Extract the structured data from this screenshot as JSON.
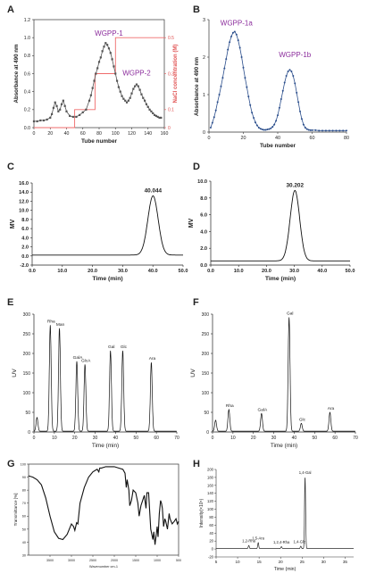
{
  "chart_data": [
    {
      "panel": "A",
      "type": "line",
      "xlabel": "Tube number",
      "ylabel": "Absorbance at 490 nm",
      "y2label": "NaCl concentration (M)",
      "xlim": [
        0,
        160
      ],
      "ylim": [
        0,
        1.2
      ],
      "y2lim": [
        0,
        0.6
      ],
      "xticks": [
        0,
        20,
        40,
        60,
        80,
        100,
        120,
        140,
        160
      ],
      "yticks": [
        0.0,
        0.2,
        0.4,
        0.6,
        0.8,
        1.0,
        1.2
      ],
      "y2ticks": [
        "0",
        "0.1",
        "0.3",
        "0.5"
      ],
      "annotations": [
        "WGPP-1",
        "WGPP-2"
      ],
      "series": [
        {
          "kind": "absorbance",
          "color": "#555555",
          "x": [
            0,
            4,
            8,
            12,
            16,
            20,
            22,
            24,
            26,
            28,
            30,
            32,
            34,
            36,
            38,
            40,
            44,
            48,
            52,
            56,
            60,
            64,
            68,
            70,
            72,
            74,
            76,
            78,
            80,
            82,
            84,
            86,
            88,
            90,
            92,
            94,
            96,
            98,
            100,
            102,
            104,
            106,
            108,
            110,
            112,
            114,
            116,
            118,
            120,
            122,
            124,
            126,
            128,
            130,
            132,
            134,
            136,
            138,
            140,
            142,
            144,
            146,
            148,
            150,
            152,
            154,
            156
          ],
          "y": [
            0.07,
            0.07,
            0.08,
            0.08,
            0.09,
            0.11,
            0.15,
            0.22,
            0.28,
            0.24,
            0.18,
            0.2,
            0.26,
            0.3,
            0.24,
            0.18,
            0.13,
            0.12,
            0.12,
            0.14,
            0.17,
            0.2,
            0.3,
            0.36,
            0.44,
            0.52,
            0.6,
            0.66,
            0.73,
            0.78,
            0.85,
            0.9,
            0.94,
            0.92,
            0.88,
            0.83,
            0.76,
            0.68,
            0.6,
            0.52,
            0.45,
            0.4,
            0.35,
            0.32,
            0.3,
            0.28,
            0.3,
            0.33,
            0.38,
            0.43,
            0.46,
            0.48,
            0.46,
            0.42,
            0.37,
            0.33,
            0.3,
            0.26,
            0.23,
            0.2,
            0.18,
            0.16,
            0.14,
            0.13,
            0.12,
            0.11,
            0.11
          ]
        },
        {
          "kind": "nacl_step",
          "color": "#ef6b6b",
          "x": [
            0,
            50,
            50,
            75,
            75,
            100,
            100,
            160
          ],
          "y": [
            0,
            0,
            0.1,
            0.1,
            0.3,
            0.3,
            0.5,
            0.5
          ]
        }
      ]
    },
    {
      "panel": "B",
      "type": "line",
      "xlabel": "Tube number",
      "ylabel": "Absorbance at 490 nm",
      "xlim": [
        0,
        80
      ],
      "ylim": [
        0,
        3
      ],
      "xticks": [
        0,
        20,
        40,
        60,
        80
      ],
      "yticks": [
        0,
        1,
        2,
        3
      ],
      "annotations": [
        "WGPP-1a",
        "WGPP-1b"
      ],
      "series": [
        {
          "color": "#2b4e8c",
          "x": [
            1,
            2,
            3,
            4,
            5,
            6,
            7,
            8,
            9,
            10,
            11,
            12,
            13,
            14,
            15,
            16,
            17,
            18,
            19,
            20,
            21,
            22,
            23,
            24,
            25,
            26,
            27,
            28,
            29,
            30,
            31,
            32,
            33,
            34,
            35,
            36,
            37,
            38,
            39,
            40,
            41,
            42,
            43,
            44,
            45,
            46,
            47,
            48,
            49,
            50,
            51,
            52,
            53,
            54,
            55,
            56,
            57,
            58,
            59,
            60,
            62,
            64,
            66,
            68,
            70,
            72,
            74,
            76,
            78,
            80
          ],
          "y": [
            0.12,
            0.25,
            0.4,
            0.58,
            0.8,
            1.0,
            1.22,
            1.45,
            1.7,
            1.95,
            2.2,
            2.4,
            2.55,
            2.65,
            2.68,
            2.6,
            2.45,
            2.25,
            2.0,
            1.72,
            1.45,
            1.2,
            0.95,
            0.72,
            0.52,
            0.38,
            0.26,
            0.18,
            0.12,
            0.09,
            0.07,
            0.06,
            0.06,
            0.07,
            0.08,
            0.1,
            0.14,
            0.2,
            0.3,
            0.45,
            0.65,
            0.88,
            1.1,
            1.32,
            1.5,
            1.62,
            1.66,
            1.62,
            1.5,
            1.3,
            1.05,
            0.8,
            0.55,
            0.35,
            0.2,
            0.12,
            0.08,
            0.06,
            0.05,
            0.05,
            0.05,
            0.04,
            0.04,
            0.04,
            0.04,
            0.04,
            0.04,
            0.04,
            0.04,
            0.04
          ]
        }
      ]
    },
    {
      "panel": "C",
      "type": "line",
      "xlabel": "Time (min)",
      "ylabel": "MV",
      "xlim": [
        0,
        50
      ],
      "ylim": [
        -2,
        16
      ],
      "xticks": [
        "0.0",
        "10.0",
        "20.0",
        "30.0",
        "40.0",
        "50.0"
      ],
      "yticks": [
        "-2.0",
        "0.0",
        "2.0",
        "4.0",
        "6.0",
        "8.0",
        "10.0",
        "12.0",
        "14.0",
        "16.0"
      ],
      "annotations": [
        "40.044"
      ],
      "peak": {
        "center": 40.044,
        "height": 13.0,
        "baseline": 0.2,
        "width": 1.7
      }
    },
    {
      "panel": "D",
      "type": "line",
      "xlabel": "Time (min)",
      "ylabel": "MV",
      "xlim": [
        0,
        50
      ],
      "ylim": [
        0,
        10
      ],
      "xticks": [
        "0.0",
        "10.0",
        "20.0",
        "30.0",
        "40.0",
        "50.0"
      ],
      "yticks": [
        "0.0",
        "2.0",
        "4.0",
        "6.0",
        "8.0",
        "10.0"
      ],
      "annotations": [
        "30.202"
      ],
      "peak": {
        "center": 30.202,
        "height": 8.4,
        "baseline": 0.5,
        "width": 1.7
      }
    },
    {
      "panel": "E",
      "type": "line",
      "xlabel": "Time (min)",
      "ylabel": "UV",
      "xlim": [
        0,
        70
      ],
      "ylim": [
        0,
        300
      ],
      "xticks": [
        0,
        10,
        20,
        30,
        40,
        50,
        60,
        70
      ],
      "yticks": [
        0,
        50,
        100,
        150,
        200,
        250,
        300
      ],
      "peaks": [
        {
          "label": "",
          "t": 1.5,
          "h": 35
        },
        {
          "label": "Rha",
          "t": 8.0,
          "h": 270
        },
        {
          "label": "Man",
          "t": 12.5,
          "h": 262
        },
        {
          "label": "GalA",
          "t": 21.0,
          "h": 178
        },
        {
          "label": "GlcA",
          "t": 25.0,
          "h": 170
        },
        {
          "label": "Gal",
          "t": 37.5,
          "h": 205
        },
        {
          "label": "Glc",
          "t": 43.5,
          "h": 205
        },
        {
          "label": "Ara",
          "t": 57.5,
          "h": 175
        }
      ]
    },
    {
      "panel": "F",
      "type": "line",
      "xlabel": "Time (min)",
      "ylabel": "UV",
      "xlim": [
        0,
        70
      ],
      "ylim": [
        0,
        300
      ],
      "xticks": [
        0,
        10,
        20,
        30,
        40,
        50,
        60,
        70
      ],
      "yticks": [
        0,
        50,
        100,
        150,
        200,
        250,
        300
      ],
      "peaks": [
        {
          "label": "",
          "t": 1.5,
          "h": 28
        },
        {
          "label": "Rha",
          "t": 8.0,
          "h": 55
        },
        {
          "label": "GalA",
          "t": 24.0,
          "h": 45
        },
        {
          "label": "Gal",
          "t": 37.5,
          "h": 290
        },
        {
          "label": "Glc",
          "t": 43.5,
          "h": 20
        },
        {
          "label": "Ara",
          "t": 57.5,
          "h": 48
        }
      ]
    },
    {
      "panel": "G",
      "type": "line",
      "xlabel": "Wavenumber cm-1",
      "ylabel": "Transmittance [%]",
      "xlim": [
        4000,
        500
      ],
      "ylim": [
        30,
        100
      ],
      "xticks": [
        3500,
        3000,
        2500,
        2000,
        1500,
        1000,
        500
      ],
      "yticks": [
        30,
        40,
        50,
        60,
        70,
        80,
        90,
        100
      ],
      "series": [
        {
          "color": "#111111",
          "x": [
            4000,
            3900,
            3800,
            3700,
            3600,
            3500,
            3400,
            3300,
            3200,
            3100,
            3000,
            2950,
            2920,
            2880,
            2850,
            2800,
            2700,
            2600,
            2500,
            2400,
            2360,
            2340,
            2300,
            2200,
            2100,
            2000,
            1900,
            1800,
            1750,
            1720,
            1700,
            1660,
            1640,
            1600,
            1560,
            1500,
            1450,
            1420,
            1400,
            1380,
            1340,
            1300,
            1260,
            1240,
            1200,
            1150,
            1100,
            1080,
            1050,
            1020,
            1000,
            980,
            950,
            920,
            900,
            880,
            850,
            820,
            800,
            760,
            720,
            700,
            650,
            600,
            560,
            530,
            500
          ],
          "y": [
            91,
            90,
            88,
            84,
            74,
            60,
            48,
            43,
            42,
            46,
            54,
            52,
            49,
            55,
            54,
            70,
            82,
            90,
            94,
            96,
            94,
            97,
            97,
            98,
            98,
            98,
            97,
            96,
            93,
            82,
            88,
            80,
            68,
            72,
            80,
            78,
            70,
            60,
            64,
            68,
            72,
            76,
            66,
            78,
            78,
            50,
            42,
            48,
            38,
            46,
            52,
            44,
            62,
            72,
            70,
            66,
            52,
            58,
            56,
            50,
            62,
            58,
            54,
            56,
            58,
            54,
            56
          ]
        }
      ]
    },
    {
      "panel": "H",
      "type": "line",
      "xlabel": "Time (min)",
      "ylabel": "Intensity(×10⁵)",
      "xlim": [
        5,
        37
      ],
      "ylim": [
        -20,
        200
      ],
      "xticks": [
        5,
        10,
        15,
        20,
        25,
        30,
        35
      ],
      "yticks": [
        -20,
        0,
        20,
        40,
        60,
        80,
        100,
        120,
        140,
        160,
        180,
        200
      ],
      "peaks": [
        {
          "label": "1,2-Rha",
          "t": 12.6,
          "h": 8
        },
        {
          "label": "1,5-Ara",
          "t": 14.8,
          "h": 15
        },
        {
          "label": "1,2,4-Rha",
          "t": 20.2,
          "h": 5
        },
        {
          "label": "1,4-Glc",
          "t": 24.7,
          "h": 6
        },
        {
          "label": "1,4-Gal",
          "t": 25.7,
          "h": 180
        }
      ]
    }
  ]
}
